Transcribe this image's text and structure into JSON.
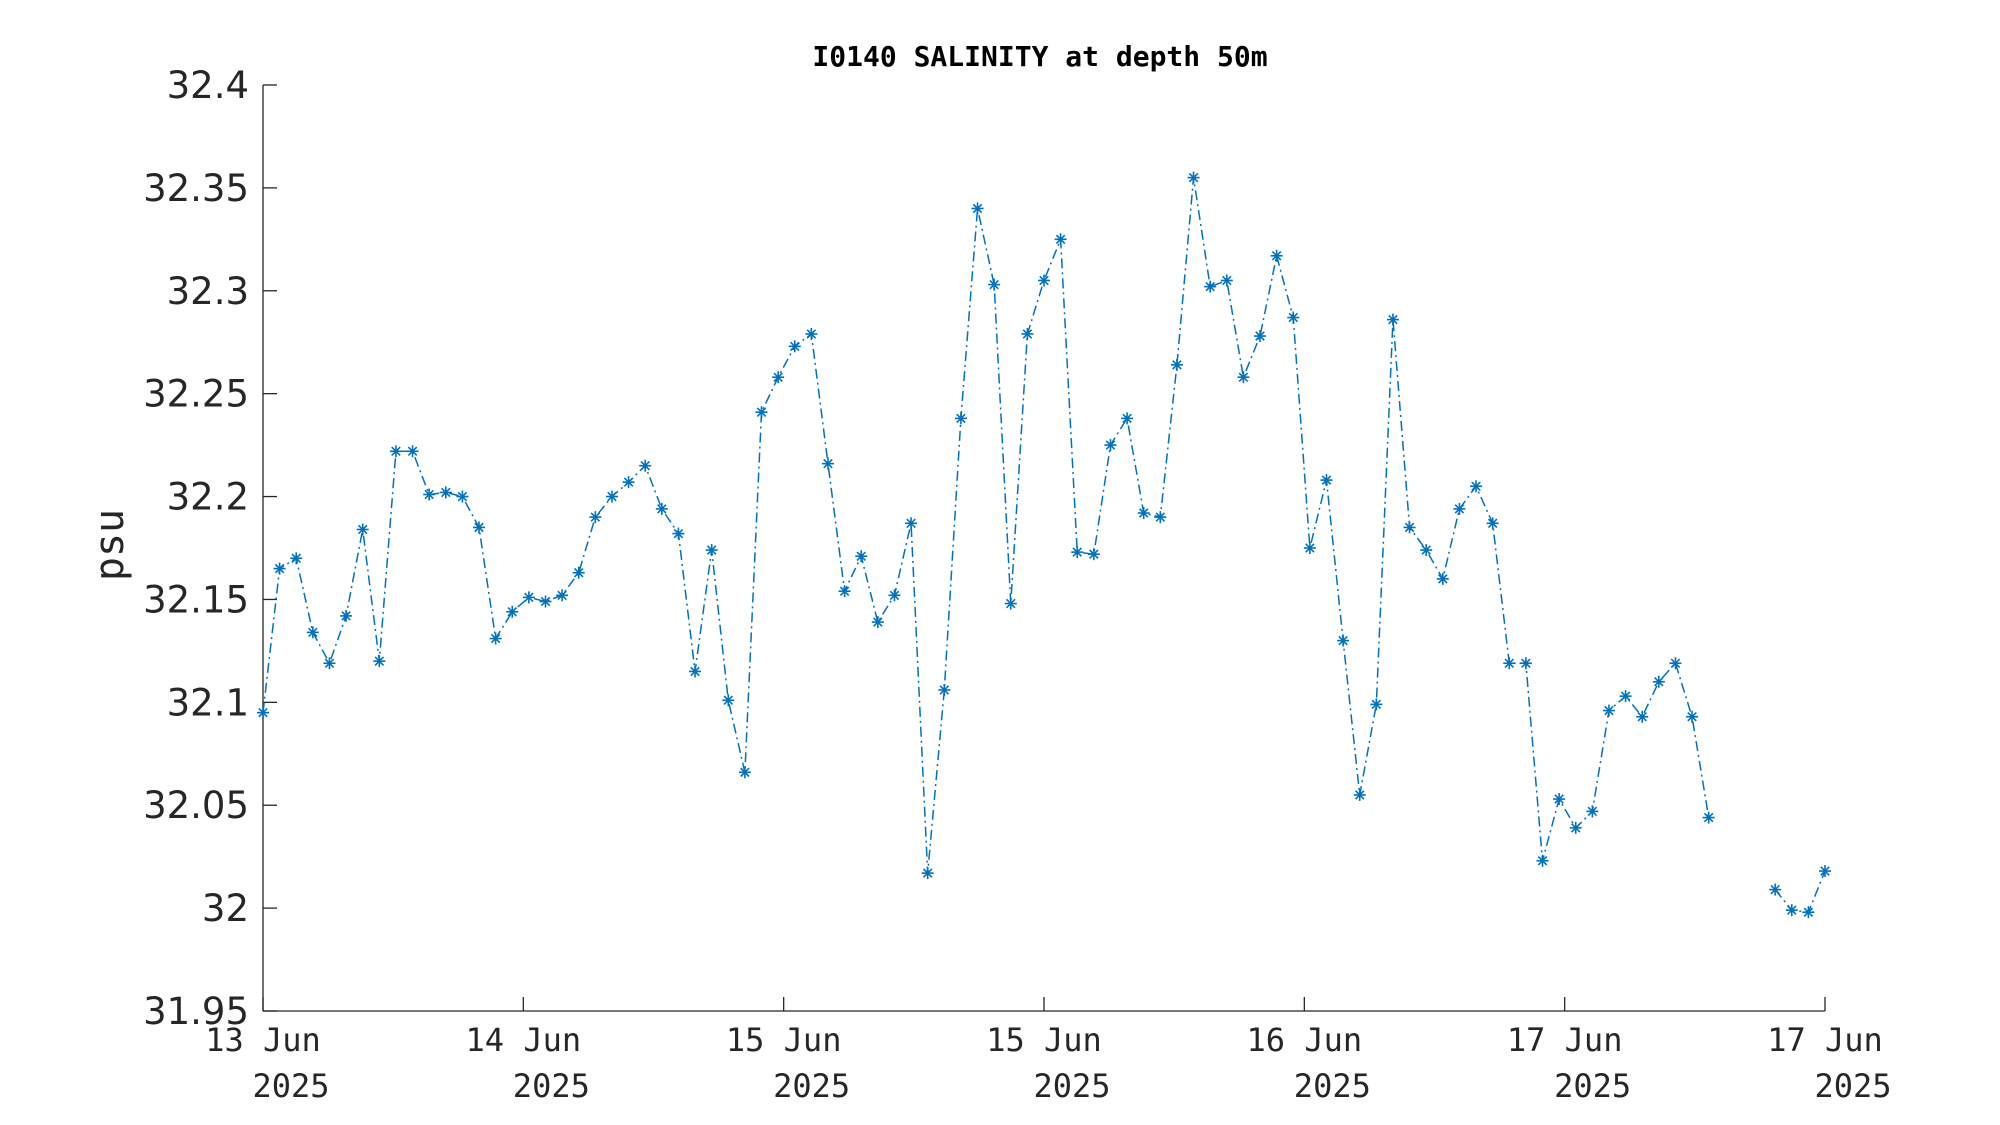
{
  "chart_data": {
    "type": "line",
    "title": "I0140 SALINITY at depth 50m",
    "xlabel": "",
    "ylabel": "psu",
    "ylim": [
      31.95,
      32.4
    ],
    "yticks": [
      31.95,
      32,
      32.05,
      32.1,
      32.15,
      32.2,
      32.25,
      32.3,
      32.35,
      32.4
    ],
    "ytick_labels": [
      "31.95",
      "32",
      "32.05",
      "32.1",
      "32.15",
      "32.2",
      "32.25",
      "32.3",
      "32.35",
      "32.4"
    ],
    "xlim_hours": [
      0,
      96
    ],
    "xticks": [
      {
        "hour": 0,
        "line1": "13 Jun",
        "line2": "2025"
      },
      {
        "hour": 16,
        "line1": "14 Jun",
        "line2": "2025"
      },
      {
        "hour": 32,
        "line1": "15 Jun",
        "line2": "2025"
      },
      {
        "hour": 48,
        "line1": "15 Jun",
        "line2": "2025"
      },
      {
        "hour": 64,
        "line1": "16 Jun",
        "line2": "2025"
      },
      {
        "hour": 80,
        "line1": "17 Jun",
        "line2": "2025"
      },
      {
        "hour": 96,
        "line1": "17 Jun",
        "line2": "2025"
      }
    ],
    "grid": false,
    "marker": "asterisk",
    "line_style": "dash-dot",
    "color": "#0072BD",
    "series": [
      {
        "values": [
          32.095,
          32.165,
          32.17,
          32.134,
          32.119,
          32.142,
          32.184,
          32.12,
          32.222,
          32.222,
          32.201,
          32.202,
          32.2,
          32.185,
          32.131,
          32.144,
          32.151,
          32.149,
          32.152,
          32.163,
          32.19,
          32.2,
          32.207,
          32.215,
          32.194,
          32.182,
          32.115,
          32.174,
          32.101,
          32.066,
          32.241,
          32.258,
          32.273,
          32.279,
          32.216,
          32.154,
          32.171,
          32.139,
          32.152,
          32.187,
          32.017,
          32.106,
          32.238,
          32.34,
          32.303,
          32.148,
          32.279,
          32.305,
          32.325,
          32.173,
          32.172,
          32.225,
          32.238,
          32.192,
          32.19,
          32.264,
          32.355,
          32.302,
          32.305,
          32.258,
          32.278,
          32.317,
          32.287,
          32.175,
          32.208,
          32.13,
          32.055,
          32.099,
          32.286,
          32.185,
          32.174,
          32.16,
          32.194,
          32.205,
          32.187,
          32.119,
          32.119,
          32.023,
          32.053,
          32.039,
          32.047,
          32.096,
          32.103,
          32.093,
          32.11,
          32.119,
          32.093,
          32.044,
          null,
          null,
          null,
          32.009,
          31.999,
          31.998,
          32.018
        ]
      }
    ]
  }
}
